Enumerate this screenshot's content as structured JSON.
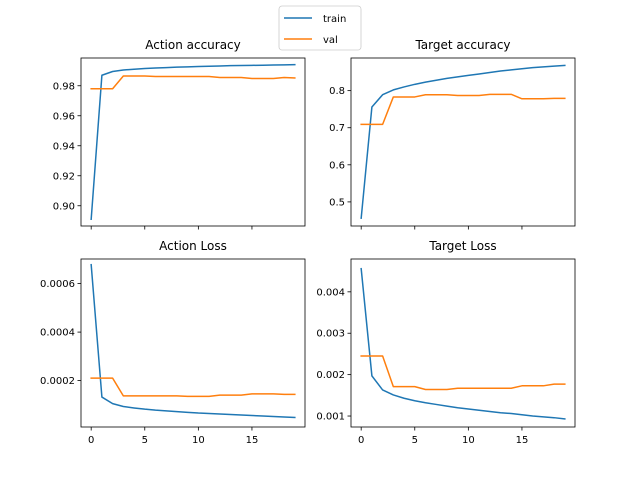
{
  "legend": {
    "entries": [
      {
        "label": "train",
        "color": "#1f77b4"
      },
      {
        "label": "val",
        "color": "#ff7f0e"
      }
    ],
    "placement": "top-center"
  },
  "chart_data": [
    {
      "type": "line",
      "title": "Action accuracy",
      "x": [
        0,
        1,
        2,
        3,
        4,
        5,
        6,
        7,
        8,
        9,
        10,
        11,
        12,
        13,
        14,
        15,
        16,
        17,
        18,
        19
      ],
      "xlim": [
        -0.95,
        19.95
      ],
      "ylim": [
        0.8865,
        0.9985
      ],
      "yticks": [
        0.9,
        0.92,
        0.94,
        0.96,
        0.98
      ],
      "ytick_labels": [
        "0.90",
        "0.92",
        "0.94",
        "0.96",
        "0.98"
      ],
      "xticks": [
        0,
        5,
        10,
        15
      ],
      "xtick_labels": [],
      "series": [
        {
          "name": "train",
          "color": "#1f77b4",
          "values": [
            0.891,
            0.987,
            0.9895,
            0.9905,
            0.991,
            0.9915,
            0.9918,
            0.9921,
            0.9924,
            0.9926,
            0.9928,
            0.993,
            0.9932,
            0.9934,
            0.9935,
            0.9936,
            0.9937,
            0.9938,
            0.9939,
            0.9941
          ]
        },
        {
          "name": "val",
          "color": "#ff7f0e",
          "values": [
            0.978,
            0.978,
            0.978,
            0.9865,
            0.9865,
            0.9865,
            0.9862,
            0.9862,
            0.9862,
            0.9862,
            0.9862,
            0.9862,
            0.9855,
            0.9855,
            0.9855,
            0.9848,
            0.9848,
            0.9848,
            0.9855,
            0.9852
          ]
        }
      ]
    },
    {
      "type": "line",
      "title": "Target accuracy",
      "x": [
        0,
        1,
        2,
        3,
        4,
        5,
        6,
        7,
        8,
        9,
        10,
        11,
        12,
        13,
        14,
        15,
        16,
        17,
        18,
        19
      ],
      "xlim": [
        -0.95,
        19.95
      ],
      "ylim": [
        0.435,
        0.888
      ],
      "yticks": [
        0.5,
        0.6,
        0.7,
        0.8
      ],
      "ytick_labels": [
        "0.5",
        "0.6",
        "0.7",
        "0.8"
      ],
      "xticks": [
        0,
        5,
        10,
        15
      ],
      "xtick_labels": [],
      "series": [
        {
          "name": "train",
          "color": "#1f77b4",
          "values": [
            0.456,
            0.756,
            0.789,
            0.802,
            0.81,
            0.817,
            0.823,
            0.828,
            0.833,
            0.837,
            0.841,
            0.845,
            0.849,
            0.853,
            0.856,
            0.859,
            0.862,
            0.864,
            0.866,
            0.868
          ]
        },
        {
          "name": "val",
          "color": "#ff7f0e",
          "values": [
            0.709,
            0.709,
            0.709,
            0.783,
            0.783,
            0.783,
            0.789,
            0.789,
            0.789,
            0.787,
            0.787,
            0.787,
            0.79,
            0.79,
            0.79,
            0.778,
            0.778,
            0.778,
            0.779,
            0.779
          ]
        }
      ]
    },
    {
      "type": "line",
      "title": "Action Loss",
      "x": [
        0,
        1,
        2,
        3,
        4,
        5,
        6,
        7,
        8,
        9,
        10,
        11,
        12,
        13,
        14,
        15,
        16,
        17,
        18,
        19
      ],
      "xlim": [
        -0.95,
        19.95
      ],
      "ylim": [
        8.5e-06,
        0.0007015
      ],
      "yticks": [
        0.0002,
        0.0004,
        0.0006
      ],
      "ytick_labels": [
        "0.0002",
        "0.0004",
        "0.0006"
      ],
      "xticks": [
        0,
        5,
        10,
        15
      ],
      "xtick_labels": [
        "0",
        "5",
        "10",
        "15"
      ],
      "series": [
        {
          "name": "train",
          "color": "#1f77b4",
          "values": [
            0.000678,
            0.000132,
            0.000105,
            9.3e-05,
            8.7e-05,
            8.2e-05,
            7.8e-05,
            7.5e-05,
            7.2e-05,
            6.9e-05,
            6.6e-05,
            6.4e-05,
            6.2e-05,
            6e-05,
            5.8e-05,
            5.6e-05,
            5.4e-05,
            5.2e-05,
            5e-05,
            4.8e-05
          ]
        },
        {
          "name": "val",
          "color": "#ff7f0e",
          "values": [
            0.00021,
            0.00021,
            0.00021,
            0.000137,
            0.000137,
            0.000137,
            0.000137,
            0.000137,
            0.000137,
            0.000135,
            0.000135,
            0.000135,
            0.00014,
            0.00014,
            0.00014,
            0.000145,
            0.000145,
            0.000145,
            0.000143,
            0.000143
          ]
        }
      ]
    },
    {
      "type": "line",
      "title": "Target Loss",
      "x": [
        0,
        1,
        2,
        3,
        4,
        5,
        6,
        7,
        8,
        9,
        10,
        11,
        12,
        13,
        14,
        15,
        16,
        17,
        18,
        19
      ],
      "xlim": [
        -0.95,
        19.95
      ],
      "ylim": [
        0.000735,
        0.004793
      ],
      "yticks": [
        0.001,
        0.002,
        0.003,
        0.004
      ],
      "ytick_labels": [
        "0.001",
        "0.002",
        "0.003",
        "0.004"
      ],
      "xticks": [
        0,
        5,
        10,
        15
      ],
      "xtick_labels": [
        "0",
        "5",
        "10",
        "15"
      ],
      "series": [
        {
          "name": "train",
          "color": "#1f77b4",
          "values": [
            0.00456,
            0.00197,
            0.00163,
            0.00151,
            0.00143,
            0.00137,
            0.00132,
            0.00128,
            0.00124,
            0.0012,
            0.00117,
            0.00114,
            0.00111,
            0.00108,
            0.00106,
            0.00103,
            0.001,
            0.00098,
            0.00096,
            0.00093
          ]
        },
        {
          "name": "val",
          "color": "#ff7f0e",
          "values": [
            0.00245,
            0.00245,
            0.00245,
            0.00171,
            0.00171,
            0.00171,
            0.00164,
            0.00164,
            0.00164,
            0.00167,
            0.00167,
            0.00167,
            0.00167,
            0.00167,
            0.00167,
            0.00173,
            0.00173,
            0.00173,
            0.00177,
            0.00177
          ]
        }
      ]
    }
  ]
}
